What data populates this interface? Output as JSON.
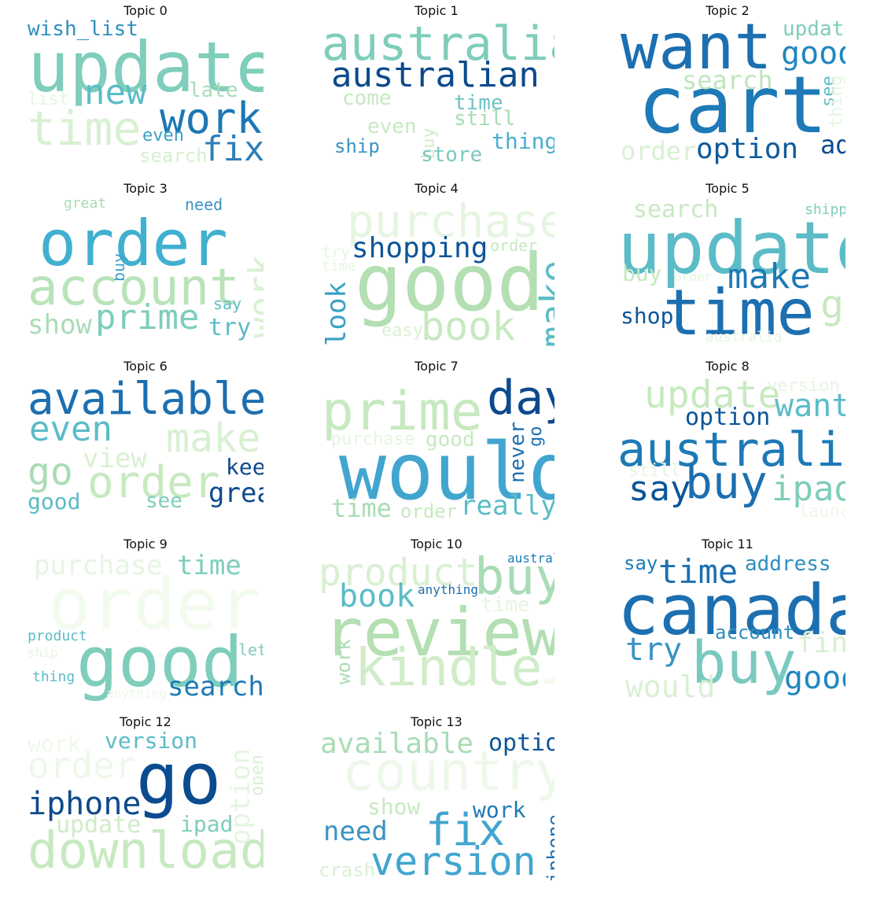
{
  "colormap": "YlGnBu-like",
  "panels": [
    {
      "title": "Topic 0",
      "words": [
        {
          "t": "wish_list",
          "c": "#2f8fc0"
        },
        {
          "t": "update",
          "c": "#7fcdbb"
        },
        {
          "t": "new",
          "c": "#5bbcc7"
        },
        {
          "t": "late",
          "c": "#a8dcb5"
        },
        {
          "t": "list",
          "c": "#e6f5e1"
        },
        {
          "t": "time",
          "c": "#d9f0d3"
        },
        {
          "t": "work",
          "c": "#1c78b4"
        },
        {
          "t": "even",
          "c": "#3aa1c6"
        },
        {
          "t": "fix",
          "c": "#2c7fb8"
        },
        {
          "t": "search",
          "c": "#d5efcf"
        }
      ]
    },
    {
      "title": "Topic 1",
      "words": [
        {
          "t": "australia",
          "c": "#7fcdbb"
        },
        {
          "t": "australian",
          "c": "#0d4a8c"
        },
        {
          "t": "come",
          "c": "#c7e9c0"
        },
        {
          "t": "time",
          "c": "#6cc3c6"
        },
        {
          "t": "still",
          "c": "#a8dcb5"
        },
        {
          "t": "even",
          "c": "#c7e9c0"
        },
        {
          "t": "buy",
          "c": "#d0ecc8"
        },
        {
          "t": "thing",
          "c": "#4aaed0"
        },
        {
          "t": "ship",
          "c": "#3a93c3"
        },
        {
          "t": "store",
          "c": "#79c9c0"
        }
      ]
    },
    {
      "title": "Topic 2",
      "words": [
        {
          "t": "want",
          "c": "#1c6fb0"
        },
        {
          "t": "update",
          "c": "#7fcdbb"
        },
        {
          "t": "good",
          "c": "#2186c0"
        },
        {
          "t": "cart",
          "c": "#1d7ab6"
        },
        {
          "t": "search",
          "c": "#bfe6bc"
        },
        {
          "t": "see",
          "c": "#5bbcc7"
        },
        {
          "t": "thing",
          "c": "#e6f5e1"
        },
        {
          "t": "order",
          "c": "#d9f0d3"
        },
        {
          "t": "option",
          "c": "#0e5a9c"
        },
        {
          "t": "add",
          "c": "#0b4b8f"
        }
      ]
    },
    {
      "title": "Topic 3",
      "words": [
        {
          "t": "great",
          "c": "#a8dcb5"
        },
        {
          "t": "need",
          "c": "#3a93c3"
        },
        {
          "t": "order",
          "c": "#41b0d0"
        },
        {
          "t": "buy",
          "c": "#3aa1c6"
        },
        {
          "t": "account",
          "c": "#b9e3b9"
        },
        {
          "t": "work",
          "c": "#d9f0d3"
        },
        {
          "t": "say",
          "c": "#5bbcc7"
        },
        {
          "t": "show",
          "c": "#a8dcb5"
        },
        {
          "t": "prime",
          "c": "#7fcdbb"
        },
        {
          "t": "try",
          "c": "#5bbcc7"
        }
      ]
    },
    {
      "title": "Topic 4",
      "words": [
        {
          "t": "purchase",
          "c": "#e6f5e1"
        },
        {
          "t": "shopping",
          "c": "#0d5598"
        },
        {
          "t": "order",
          "c": "#c7e9c0"
        },
        {
          "t": "try",
          "c": "#e6f5e1"
        },
        {
          "t": "time",
          "c": "#e6f5e1"
        },
        {
          "t": "good",
          "c": "#b3dfb3"
        },
        {
          "t": "make",
          "c": "#5bbcc7"
        },
        {
          "t": "look",
          "c": "#3aa1c6"
        },
        {
          "t": "easy",
          "c": "#d9f0d3"
        },
        {
          "t": "book",
          "c": "#c7e9c0"
        }
      ]
    },
    {
      "title": "Topic 5",
      "words": [
        {
          "t": "search",
          "c": "#c7e9c0"
        },
        {
          "t": "shipping",
          "c": "#7fcdbb"
        },
        {
          "t": "update",
          "c": "#5bbcc7"
        },
        {
          "t": "make",
          "c": "#1d7ab6"
        },
        {
          "t": "buy",
          "c": "#c7e9c0"
        },
        {
          "t": "order",
          "c": "#e6f5e1"
        },
        {
          "t": "time",
          "c": "#1c6fb0"
        },
        {
          "t": "go",
          "c": "#c7e9c0"
        },
        {
          "t": "shop",
          "c": "#0d5598"
        },
        {
          "t": "australia",
          "c": "#e6f5e1"
        }
      ]
    },
    {
      "title": "Topic 6",
      "words": [
        {
          "t": "available",
          "c": "#1c6fb0"
        },
        {
          "t": "even",
          "c": "#5bbcc7"
        },
        {
          "t": "make",
          "c": "#d9f0d3"
        },
        {
          "t": "view",
          "c": "#d9f0d3"
        },
        {
          "t": "go",
          "c": "#a8dcb5"
        },
        {
          "t": "order",
          "c": "#c7e9c0"
        },
        {
          "t": "keep",
          "c": "#0d4a8c"
        },
        {
          "t": "good",
          "c": "#5bbcc7"
        },
        {
          "t": "see",
          "c": "#7fcdbb"
        },
        {
          "t": "great",
          "c": "#0d4a8c"
        }
      ]
    },
    {
      "title": "Topic 7",
      "words": [
        {
          "t": "prime",
          "c": "#c7e9c0"
        },
        {
          "t": "day",
          "c": "#0d4a8c"
        },
        {
          "t": "purchase",
          "c": "#e6f5e1"
        },
        {
          "t": "good",
          "c": "#c7e9c0"
        },
        {
          "t": "would",
          "c": "#41a5cf"
        },
        {
          "t": "never",
          "c": "#1c6fb0"
        },
        {
          "t": "go",
          "c": "#1c6fb0"
        },
        {
          "t": "time",
          "c": "#a8dcb5"
        },
        {
          "t": "order",
          "c": "#c7e9c0"
        },
        {
          "t": "really",
          "c": "#5bbcc7"
        }
      ]
    },
    {
      "title": "Topic 8",
      "words": [
        {
          "t": "update",
          "c": "#c7e9c0"
        },
        {
          "t": "version",
          "c": "#e6f5e1"
        },
        {
          "t": "want",
          "c": "#5bbcc7"
        },
        {
          "t": "option",
          "c": "#0d5598"
        },
        {
          "t": "australia",
          "c": "#1d7ab6"
        },
        {
          "t": "still",
          "c": "#e6f5e1"
        },
        {
          "t": "say",
          "c": "#0d5598"
        },
        {
          "t": "buy",
          "c": "#1c6fb0"
        },
        {
          "t": "ipad",
          "c": "#7fcdbb"
        },
        {
          "t": "launch",
          "c": "#eef8ea"
        }
      ]
    },
    {
      "title": "Topic 9",
      "words": [
        {
          "t": "purchase",
          "c": "#e6f5e1"
        },
        {
          "t": "time",
          "c": "#7fcdbb"
        },
        {
          "t": "order",
          "c": "#f3fbef"
        },
        {
          "t": "product",
          "c": "#5bbcc7"
        },
        {
          "t": "ship",
          "c": "#e6f5e1"
        },
        {
          "t": "good",
          "c": "#7fcdbb"
        },
        {
          "t": "let",
          "c": "#7fcdbb"
        },
        {
          "t": "thing",
          "c": "#5bbcc7"
        },
        {
          "t": "anything",
          "c": "#eef8ea"
        },
        {
          "t": "search",
          "c": "#1d7ab6"
        }
      ]
    },
    {
      "title": "Topic 10",
      "words": [
        {
          "t": "product",
          "c": "#d9f0d3"
        },
        {
          "t": "australia",
          "c": "#1d7ab6"
        },
        {
          "t": "buy",
          "c": "#a8dcb5"
        },
        {
          "t": "book",
          "c": "#5bbcc7"
        },
        {
          "t": "anything",
          "c": "#1c6fb0"
        },
        {
          "t": "time",
          "c": "#e6f5e1"
        },
        {
          "t": "review",
          "c": "#b3dfb3"
        },
        {
          "t": "work",
          "c": "#a8dcb5"
        },
        {
          "t": "kindle",
          "c": "#d0ecc8"
        },
        {
          "t": "want",
          "c": "#e6f5e1"
        }
      ]
    },
    {
      "title": "Topic 11",
      "words": [
        {
          "t": "say",
          "c": "#1d7ab6"
        },
        {
          "t": "time",
          "c": "#1c6fb0"
        },
        {
          "t": "address",
          "c": "#2f8fc0"
        },
        {
          "t": "canada",
          "c": "#1c6fb0"
        },
        {
          "t": "account",
          "c": "#2f8fc0"
        },
        {
          "t": "try",
          "c": "#3a93c3"
        },
        {
          "t": "buy",
          "c": "#79c9c0"
        },
        {
          "t": "find",
          "c": "#d9f0d3"
        },
        {
          "t": "would",
          "c": "#d9f0d3"
        },
        {
          "t": "good",
          "c": "#2186c0"
        }
      ]
    },
    {
      "title": "Topic 12",
      "words": [
        {
          "t": "work",
          "c": "#eef8ea"
        },
        {
          "t": "version",
          "c": "#5bbcc7"
        },
        {
          "t": "order",
          "c": "#eef8ea"
        },
        {
          "t": "go",
          "c": "#0b4b8f"
        },
        {
          "t": "option",
          "c": "#e6f5e1"
        },
        {
          "t": "open",
          "c": "#d9f0d3"
        },
        {
          "t": "iphone",
          "c": "#0d4a8c"
        },
        {
          "t": "update",
          "c": "#d0ecc8"
        },
        {
          "t": "ipad",
          "c": "#7fcdbb"
        },
        {
          "t": "download",
          "c": "#c7e9c0"
        }
      ]
    },
    {
      "title": "Topic 13",
      "words": [
        {
          "t": "available",
          "c": "#a8dcb5"
        },
        {
          "t": "option",
          "c": "#0d5598"
        },
        {
          "t": "country",
          "c": "#eef8ea"
        },
        {
          "t": "show",
          "c": "#c7e9c0"
        },
        {
          "t": "work",
          "c": "#1d7ab6"
        },
        {
          "t": "need",
          "c": "#3a93c3"
        },
        {
          "t": "fix",
          "c": "#41a5cf"
        },
        {
          "t": "iphone",
          "c": "#1c6fb0"
        },
        {
          "t": "crash",
          "c": "#d9f0d3"
        },
        {
          "t": "version",
          "c": "#41a5cf"
        }
      ]
    }
  ]
}
